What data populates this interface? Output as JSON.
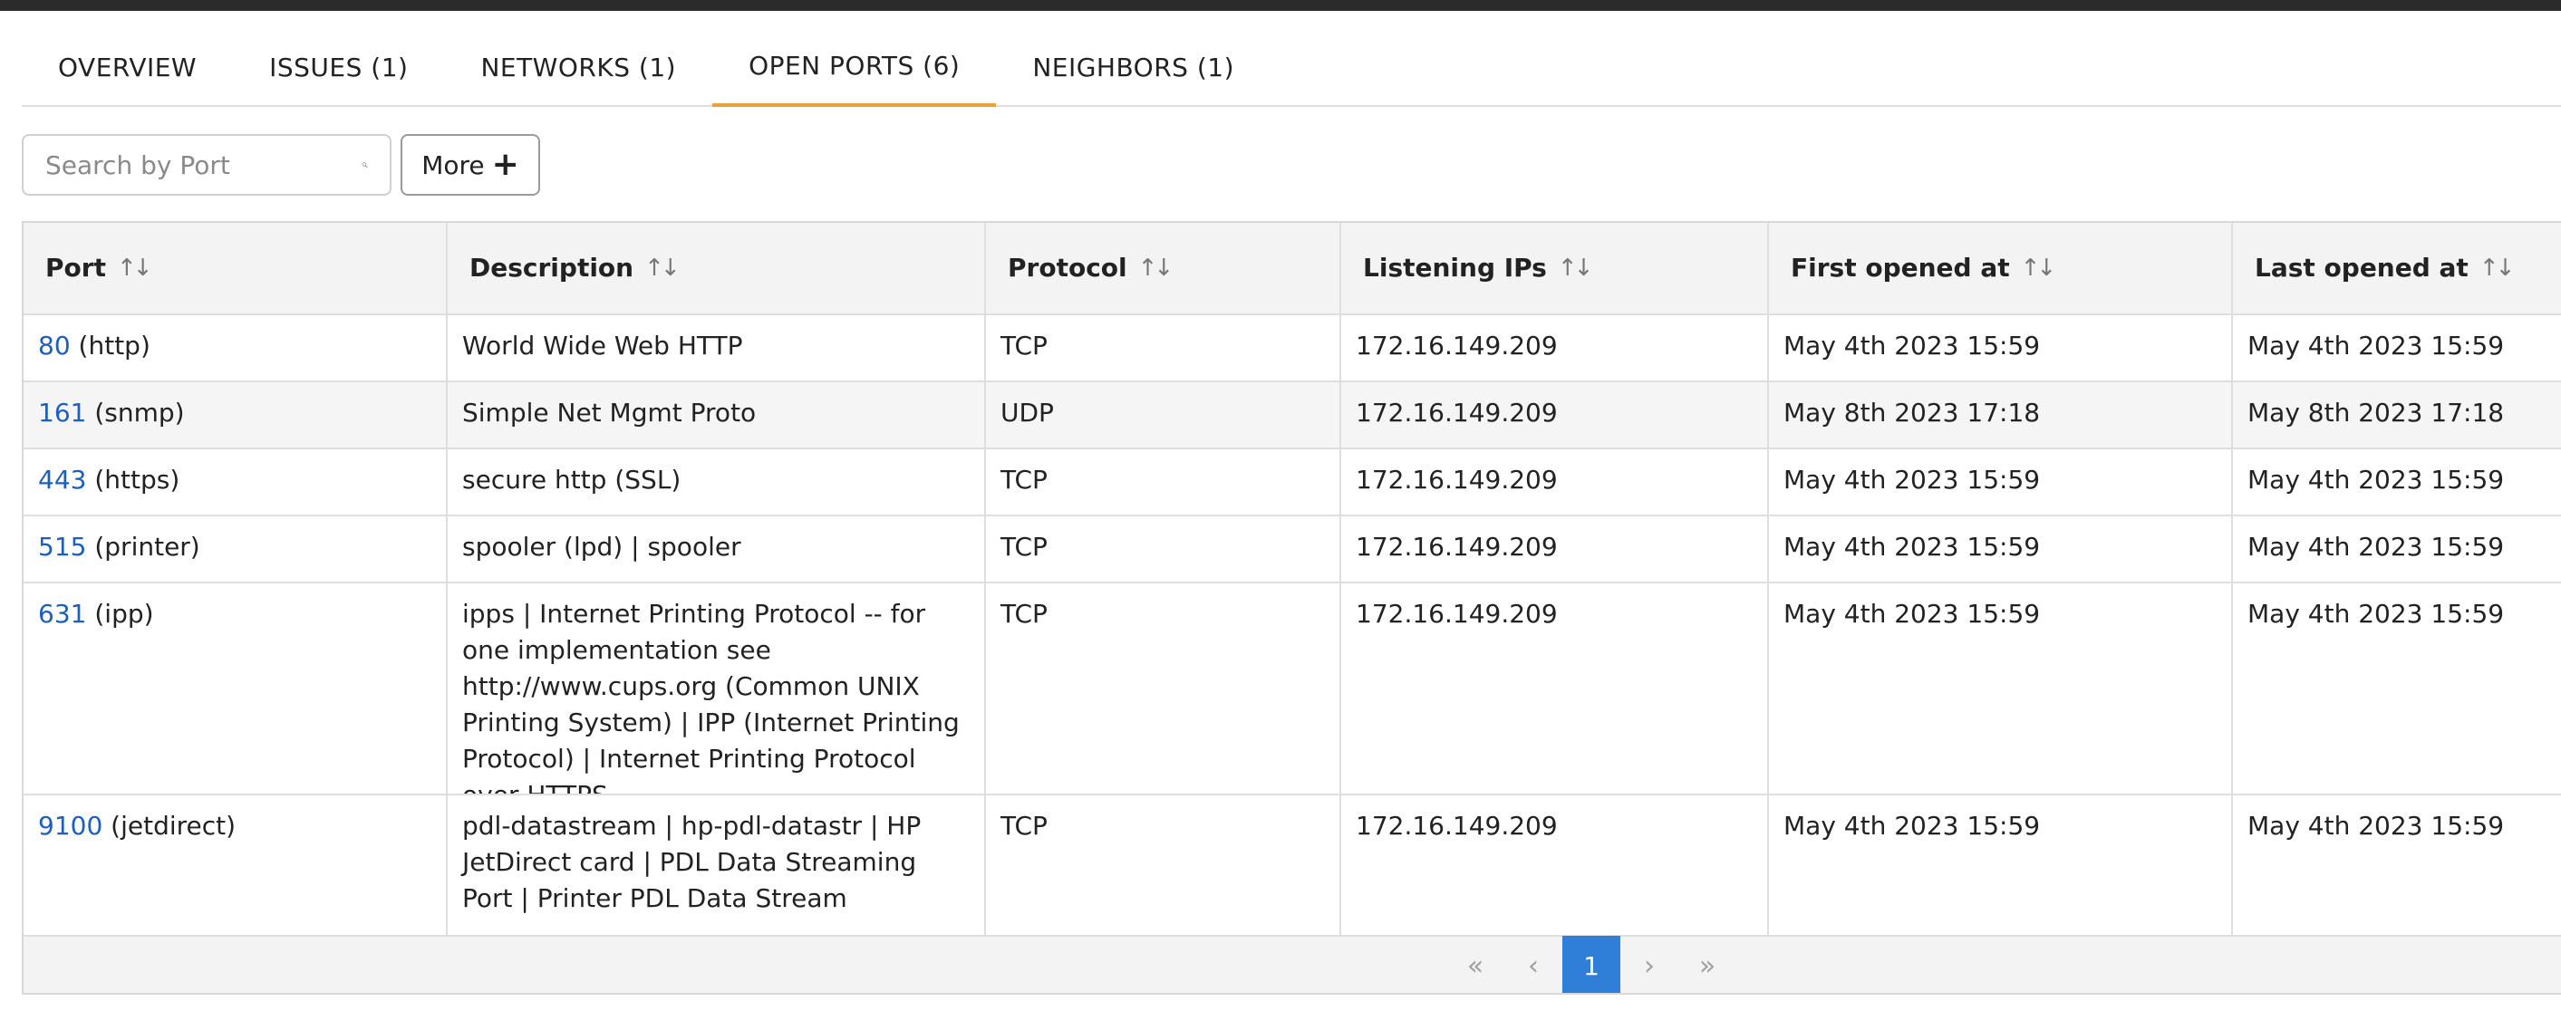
{
  "tabs": [
    {
      "label": "OVERVIEW"
    },
    {
      "label": "ISSUES (1)"
    },
    {
      "label": "NETWORKS (1)"
    },
    {
      "label": "OPEN PORTS (6)"
    },
    {
      "label": "NEIGHBORS (1)"
    }
  ],
  "active_tab": "OPEN PORTS (6)",
  "toolbar": {
    "search_placeholder": "Search by Port",
    "search_value": "",
    "search_icon": "search-icon",
    "more_label": "More",
    "more_icon": "plus-icon"
  },
  "table": {
    "columns": [
      {
        "label": "Port",
        "sort_icon": "sort-icon"
      },
      {
        "label": "Description",
        "sort_icon": "sort-icon"
      },
      {
        "label": "Protocol",
        "sort_icon": "sort-icon"
      },
      {
        "label": "Listening IPs",
        "sort_icon": "sort-icon"
      },
      {
        "label": "First opened at",
        "sort_icon": "sort-icon"
      },
      {
        "label": "Last opened at",
        "sort_icon": "sort-icon"
      }
    ],
    "rows": [
      {
        "port": "80",
        "service": "(http)",
        "description": "World Wide Web HTTP",
        "protocol": "TCP",
        "ips": "172.16.149.209",
        "first": "May 4th 2023 15:59",
        "last": "May 4th 2023 15:59"
      },
      {
        "port": "161",
        "service": "(snmp)",
        "description": "Simple Net Mgmt Proto",
        "protocol": "UDP",
        "ips": "172.16.149.209",
        "first": "May 8th 2023 17:18",
        "last": "May 8th 2023 17:18"
      },
      {
        "port": "443",
        "service": "(https)",
        "description": "secure http (SSL)",
        "protocol": "TCP",
        "ips": "172.16.149.209",
        "first": "May 4th 2023 15:59",
        "last": "May 4th 2023 15:59"
      },
      {
        "port": "515",
        "service": "(printer)",
        "description": "spooler (lpd) | spooler",
        "protocol": "TCP",
        "ips": "172.16.149.209",
        "first": "May 4th 2023 15:59",
        "last": "May 4th 2023 15:59"
      },
      {
        "port": "631",
        "service": "(ipp)",
        "description": "ipps | Internet Printing Protocol -- for one implementation see http://www.cups.org (Common UNIX Printing System) | IPP (Internet Printing Protocol) | Internet Printing Protocol over HTTPS",
        "protocol": "TCP",
        "ips": "172.16.149.209",
        "first": "May 4th 2023 15:59",
        "last": "May 4th 2023 15:59"
      },
      {
        "port": "9100",
        "service": "(jetdirect)",
        "description": "pdl-datastream | hp-pdl-datastr | HP JetDirect card | PDL Data Streaming Port | Printer PDL Data Stream",
        "protocol": "TCP",
        "ips": "172.16.149.209",
        "first": "May 4th 2023 15:59",
        "last": "May 4th 2023 15:59"
      }
    ]
  },
  "pagination": {
    "first_glyph": "«",
    "prev_glyph": "‹",
    "current_page": "1",
    "next_glyph": "›",
    "last_glyph": "»"
  },
  "colors": {
    "active_tab_underline": "#e8a33d",
    "link": "#1d5fbf",
    "current_page_bg": "#2f7ed8"
  }
}
